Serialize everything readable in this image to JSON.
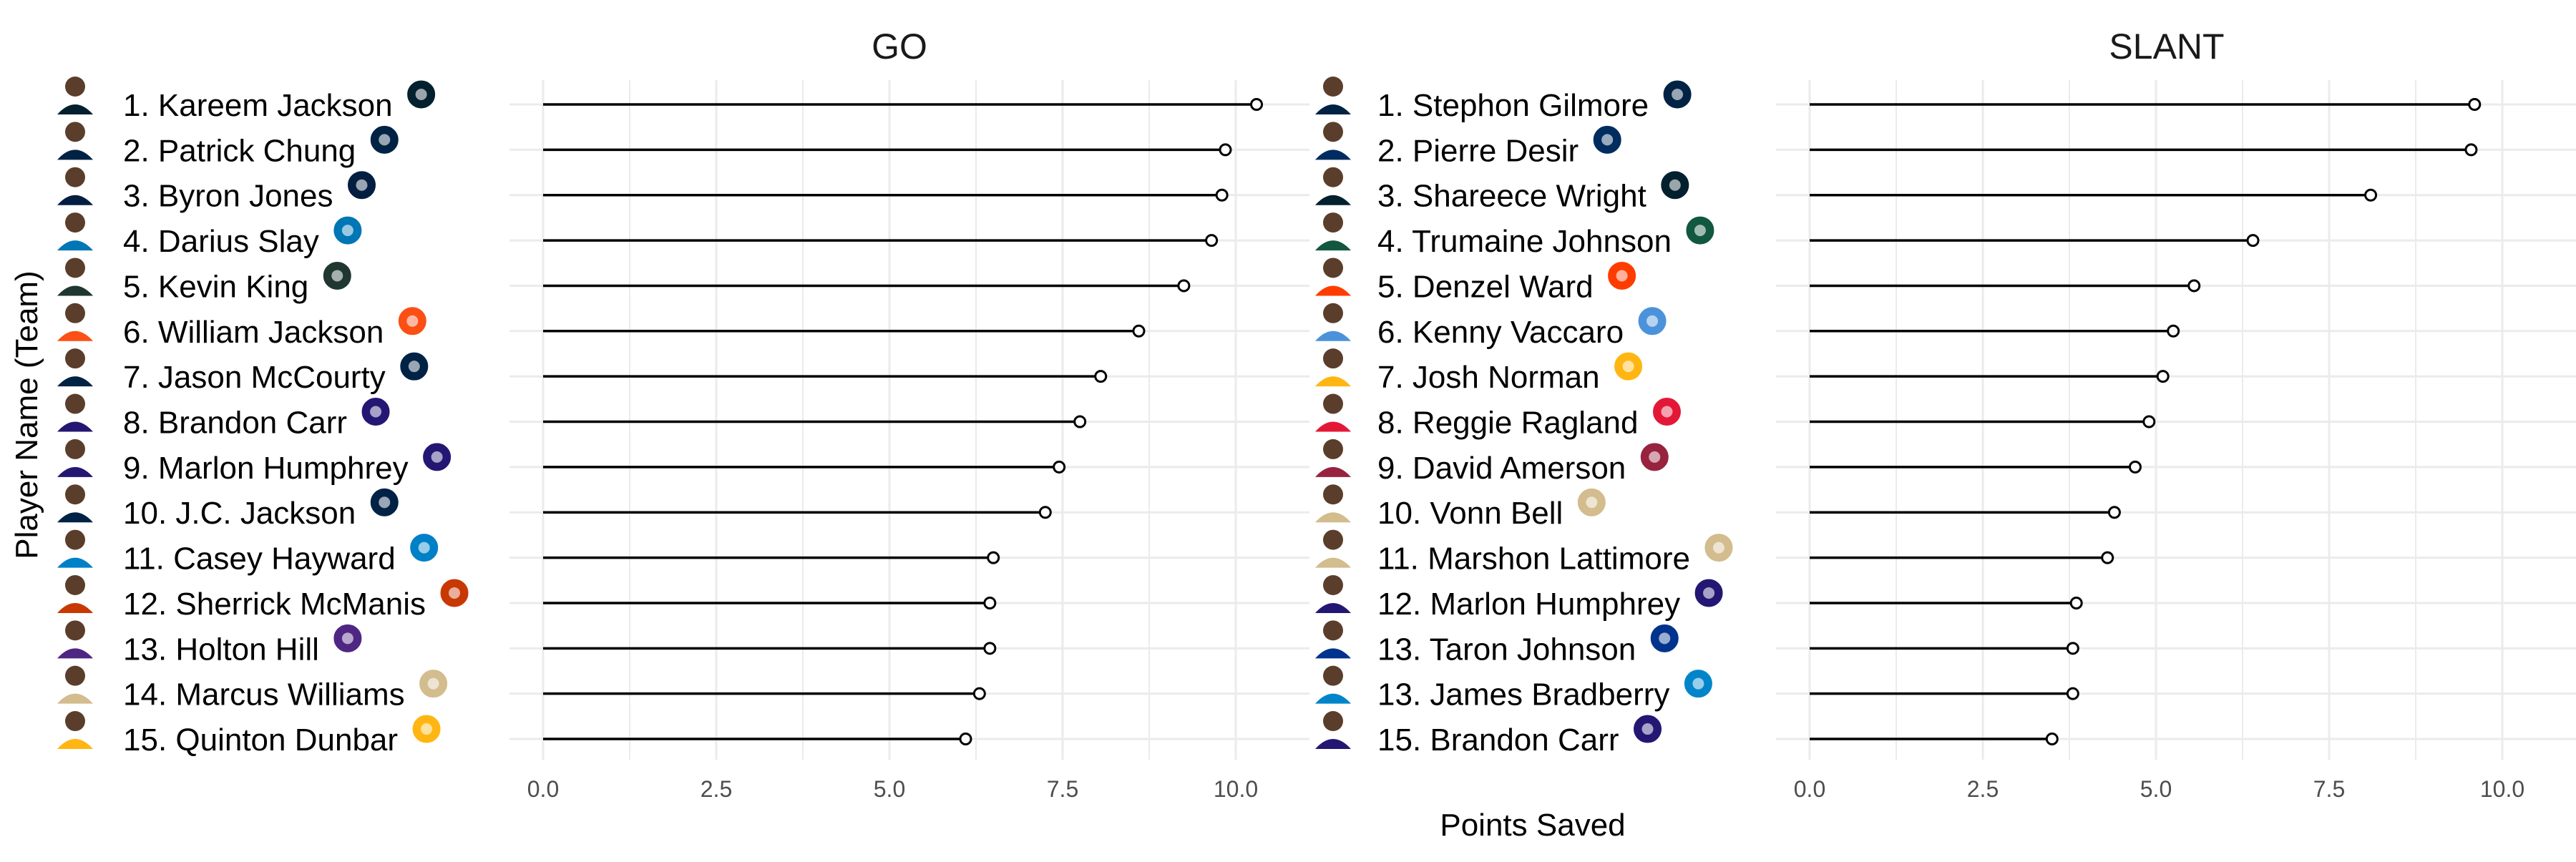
{
  "chart_data": {
    "type": "lollipop",
    "layout": "two-panel faceted",
    "xlabel": "Points Saved",
    "ylabel": "Player Name (Team)",
    "x_ticks": [
      "0.0",
      "2.5",
      "5.0",
      "7.5",
      "10.0"
    ],
    "x_range": [
      0,
      10.5
    ],
    "grid": true,
    "panels": [
      {
        "title": "GO",
        "players": [
          {
            "label": "1. Kareem Jackson",
            "team": "Houston Texans",
            "value": 10.3
          },
          {
            "label": "2. Patrick Chung",
            "team": "New England Patriots",
            "value": 9.85
          },
          {
            "label": "3. Byron Jones",
            "team": "Dallas Cowboys",
            "value": 9.8
          },
          {
            "label": "4. Darius Slay",
            "team": "Detroit Lions",
            "value": 9.65
          },
          {
            "label": "5. Kevin King",
            "team": "Green Bay Packers",
            "value": 9.25
          },
          {
            "label": "6. William Jackson",
            "team": "Cincinnati Bengals",
            "value": 8.6
          },
          {
            "label": "7. Jason McCourty",
            "team": "New England Patriots",
            "value": 8.05
          },
          {
            "label": "8. Brandon Carr",
            "team": "Baltimore Ravens",
            "value": 7.75
          },
          {
            "label": "9. Marlon Humphrey",
            "team": "Baltimore Ravens",
            "value": 7.45
          },
          {
            "label": "10. J.C. Jackson",
            "team": "New England Patriots",
            "value": 7.25
          },
          {
            "label": "11. Casey Hayward",
            "team": "Los Angeles Chargers",
            "value": 6.5
          },
          {
            "label": "12. Sherrick McManis",
            "team": "Chicago Bears",
            "value": 6.45
          },
          {
            "label": "13. Holton Hill",
            "team": "Minnesota Vikings",
            "value": 6.45
          },
          {
            "label": "14. Marcus Williams",
            "team": "New Orleans Saints",
            "value": 6.3
          },
          {
            "label": "15. Quinton Dunbar",
            "team": "Washington",
            "value": 6.1
          }
        ]
      },
      {
        "title": "SLANT",
        "players": [
          {
            "label": "1. Stephon Gilmore",
            "team": "New England Patriots",
            "value": 9.6
          },
          {
            "label": "2. Pierre Desir",
            "team": "Indianapolis Colts",
            "value": 9.55
          },
          {
            "label": "3. Shareece Wright",
            "team": "Houston Texans",
            "value": 8.1
          },
          {
            "label": "4. Trumaine Johnson",
            "team": "New York Jets",
            "value": 6.4
          },
          {
            "label": "5. Denzel Ward",
            "team": "Cleveland Browns",
            "value": 5.55
          },
          {
            "label": "6. Kenny Vaccaro",
            "team": "Tennessee Titans",
            "value": 5.25
          },
          {
            "label": "7. Josh Norman",
            "team": "Washington",
            "value": 5.1
          },
          {
            "label": "8. Reggie Ragland",
            "team": "Kansas City Chiefs",
            "value": 4.9
          },
          {
            "label": "9. David Amerson",
            "team": "Arizona Cardinals",
            "value": 4.7
          },
          {
            "label": "10. Vonn Bell",
            "team": "New Orleans Saints",
            "value": 4.4
          },
          {
            "label": "11. Marshon Lattimore",
            "team": "New Orleans Saints",
            "value": 4.3
          },
          {
            "label": "12. Marlon Humphrey",
            "team": "Baltimore Ravens",
            "value": 3.85
          },
          {
            "label": "13. Taron Johnson",
            "team": "Buffalo Bills",
            "value": 3.8
          },
          {
            "label": "13. James Bradberry",
            "team": "Carolina Panthers",
            "value": 3.8
          },
          {
            "label": "15. Brandon Carr",
            "team": "Baltimore Ravens",
            "value": 3.5
          }
        ]
      }
    ]
  },
  "colors": {
    "line": "#000000",
    "point_fill": "#ffffff",
    "grid": "#ebebeb",
    "tick_text": "#4d4d4d",
    "Houston Texans": "#03202f",
    "New England Patriots": "#002244",
    "Dallas Cowboys": "#041e42",
    "Detroit Lions": "#0076b6",
    "Green Bay Packers": "#203731",
    "Cincinnati Bengals": "#fb4f14",
    "Baltimore Ravens": "#241773",
    "Los Angeles Chargers": "#0080c6",
    "Chicago Bears": "#c83803",
    "Minnesota Vikings": "#4f2683",
    "New Orleans Saints": "#d3bc8d",
    "Washington": "#ffb612",
    "Indianapolis Colts": "#002c5f",
    "New York Jets": "#125740",
    "Cleveland Browns": "#ff3c00",
    "Tennessee Titans": "#4b92db",
    "Kansas City Chiefs": "#e31837",
    "Arizona Cardinals": "#97233f",
    "Buffalo Bills": "#00338d",
    "Carolina Panthers": "#0085ca"
  }
}
